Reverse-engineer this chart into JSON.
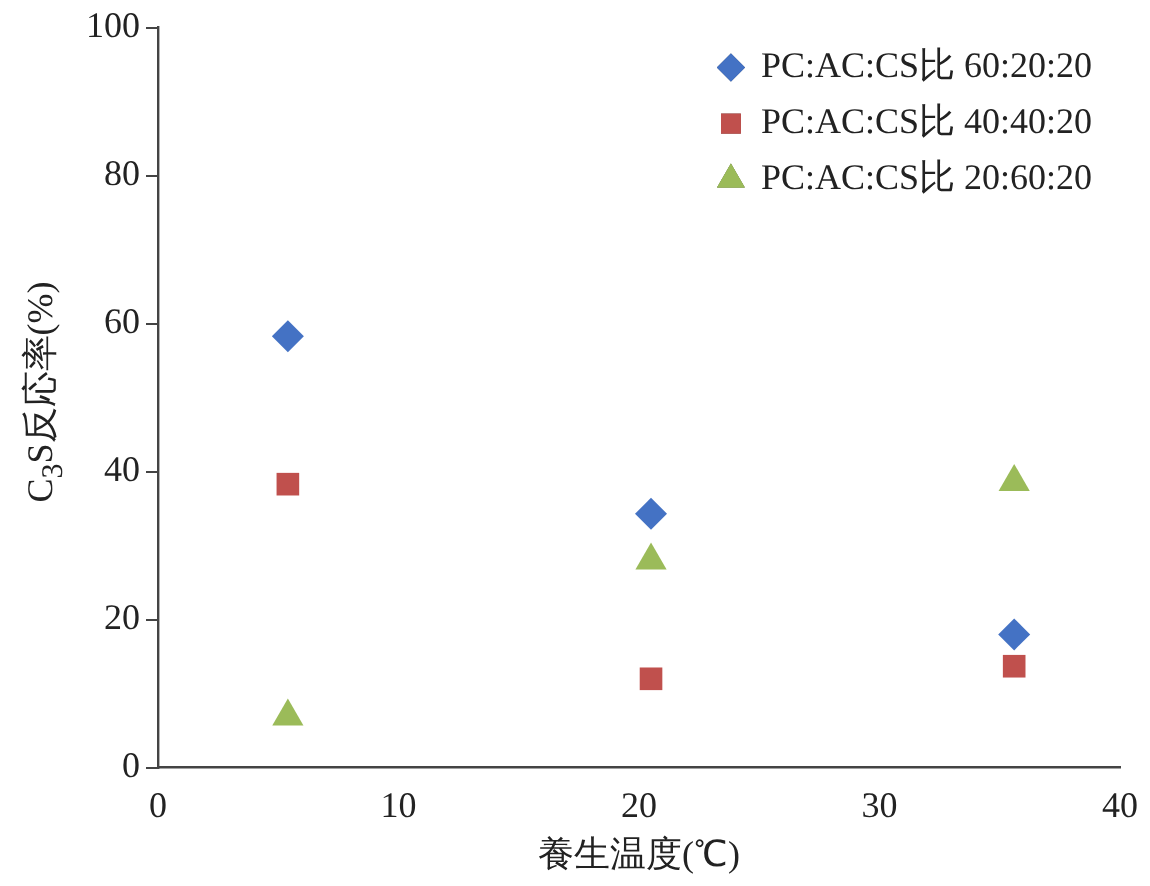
{
  "chart_data": {
    "type": "scatter",
    "xlabel": "養生温度(℃)",
    "ylabel": "C$_{3}$S反応率(%)",
    "xlim": [
      0,
      40
    ],
    "xticks": [
      0,
      10,
      20,
      30,
      40
    ],
    "ylim": [
      0,
      100
    ],
    "yticks": [
      0,
      20,
      40,
      60,
      80,
      100
    ],
    "legend": "top right",
    "grid": false,
    "series": [
      {
        "name": "PC:AC:CS比 60:20:20",
        "color": "#4472c4",
        "marker": "diamond",
        "x": [
          5.4,
          20.5,
          35.6
        ],
        "values": [
          58.3,
          34.3,
          18
        ]
      },
      {
        "name": "PC:AC:CS比 40:40:20",
        "color": "#c0504d",
        "marker": "square",
        "x": [
          5.4,
          20.5,
          35.6
        ],
        "values": [
          38.3,
          12,
          13.7
        ]
      },
      {
        "name": "PC:AC:CS比 20:60:20",
        "color": "#9bbb59",
        "marker": "triangle",
        "x": [
          5.4,
          20.5,
          35.6
        ],
        "values": [
          6.9,
          28,
          38.6
        ]
      }
    ]
  }
}
